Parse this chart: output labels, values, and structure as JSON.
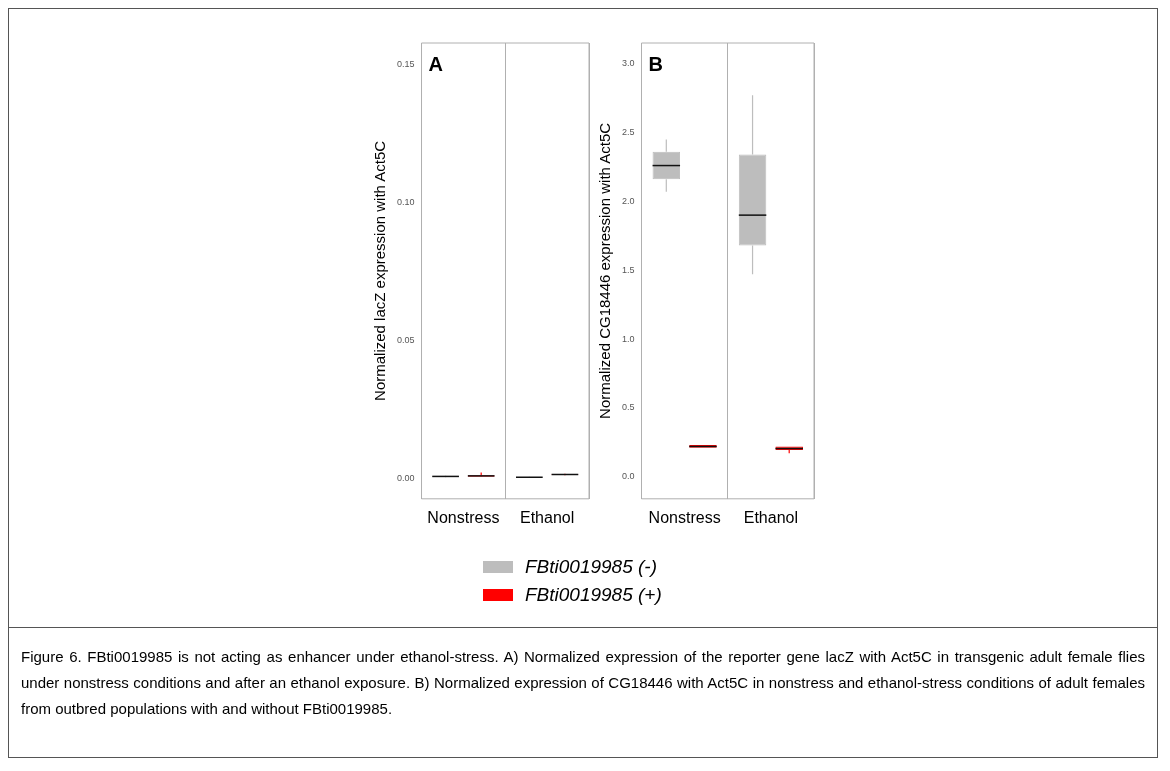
{
  "chart_data": [
    {
      "type": "box",
      "title": "A",
      "ylabel": "Normalized lacZ expression with Act5C",
      "categories": [
        "Nonstress",
        "Ethanol"
      ],
      "ylim": [
        -0.0073,
        0.1577
      ],
      "yticks": [
        {
          "value": 0,
          "label": "0.00"
        },
        {
          "value": 0.05,
          "label": "0.05"
        },
        {
          "value": 0.1,
          "label": "0.10"
        },
        {
          "value": 0.15,
          "label": "0.15"
        }
      ],
      "grid": "x",
      "legend": false,
      "series": [
        {
          "color": "#bdbdbd",
          "boxes": [
            {
              "low": 0.0005,
              "q1": 0.0006,
              "median": 0.0008,
              "q3": 0.001,
              "high": 0.0011
            },
            {
              "low": 0.0002,
              "q1": 0.0003,
              "median": 0.0005,
              "q3": 0.0007,
              "high": 0.0008
            }
          ]
        },
        {
          "color": "#ff0000",
          "boxes": [
            {
              "low": 0.0006,
              "q1": 0.0007,
              "median": 0.001,
              "q3": 0.0012,
              "high": 0.0022
            },
            {
              "low": 0.0012,
              "q1": 0.0013,
              "median": 0.0015,
              "q3": 0.0017,
              "high": 0.0018
            }
          ]
        }
      ]
    },
    {
      "type": "box",
      "title": "B",
      "ylabel": "Normalized CG18446 expression with Act5C",
      "categories": [
        "Nonstress",
        "Ethanol"
      ],
      "ylim": [
        -0.16,
        3.15
      ],
      "yticks": [
        {
          "value": 0,
          "label": "0.0"
        },
        {
          "value": 0.5,
          "label": "0.5"
        },
        {
          "value": 1,
          "label": "1.0"
        },
        {
          "value": 1.5,
          "label": "1.5"
        },
        {
          "value": 2,
          "label": "2.0"
        },
        {
          "value": 2.5,
          "label": "2.5"
        },
        {
          "value": 3,
          "label": "3.0"
        }
      ],
      "grid": "x",
      "legend": "bottom",
      "series": [
        {
          "name": "FBti0019985 (-)",
          "color": "#bdbdbd",
          "boxes": [
            {
              "low": 2.07,
              "q1": 2.16,
              "median": 2.26,
              "q3": 2.36,
              "high": 2.45
            },
            {
              "low": 1.47,
              "q1": 1.68,
              "median": 1.9,
              "q3": 2.34,
              "high": 2.77
            }
          ]
        },
        {
          "name": "FBti0019985 (+)",
          "color": "#ff0000",
          "boxes": [
            {
              "low": 0.21,
              "q1": 0.21,
              "median": 0.22,
              "q3": 0.23,
              "high": 0.23
            },
            {
              "low": 0.17,
              "q1": 0.195,
              "median": 0.205,
              "q3": 0.22,
              "high": 0.22
            }
          ]
        }
      ],
      "annotations": [
        "Figure 6. FBti0019985 is not acting as enhancer under ethanol-stress. A) Normalized expression of the reporter gene lacZ with Act5C in transgenic adult female flies under nonstress conditions and after an ethanol exposure. B) Normalized expression of CG18446 with Act5C in nonstress and ethanol-stress conditions of adult females from outbred populations with and without FBti0019985."
      ]
    }
  ]
}
